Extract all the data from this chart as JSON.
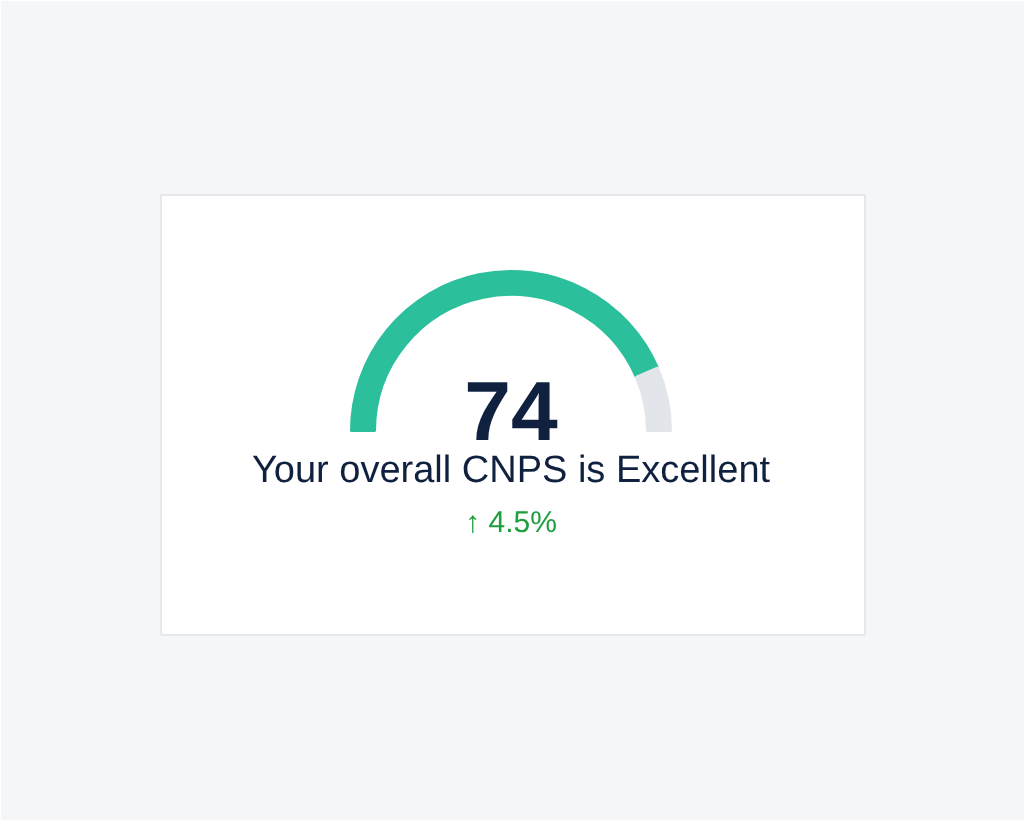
{
  "chart_data": {
    "type": "donut",
    "title": "74",
    "subtitle": "Your overall CNPS is Excellent",
    "categories": [
      null,
      null
    ],
    "values": [
      87,
      13
    ],
    "colors": [
      "#2bbf9b",
      "#e2e5e9"
    ],
    "annotations": [
      "↑ 4.5%"
    ]
  }
}
